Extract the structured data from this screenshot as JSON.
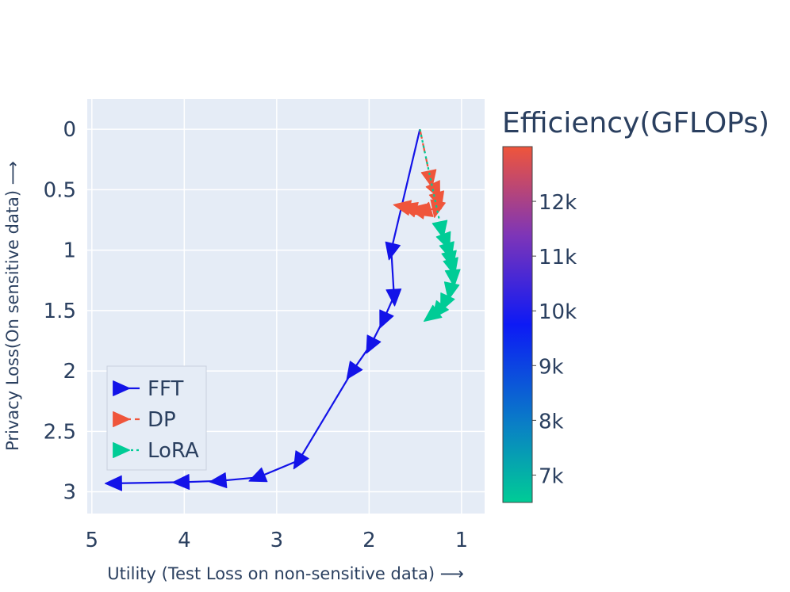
{
  "chart_data": {
    "type": "line",
    "xlabel": "Utility (Test Loss on non-sensitive data) ⟶",
    "ylabel": "Privacy Loss(On sensitive data) ⟶",
    "xlim": [
      5.05,
      0.75
    ],
    "ylim": [
      3.18,
      -0.25
    ],
    "x_ticks": [
      5,
      4,
      3,
      2,
      1
    ],
    "x_tick_labels": [
      "5",
      "4",
      "3",
      "2",
      "1"
    ],
    "y_ticks": [
      0,
      0.5,
      1,
      1.5,
      2,
      2.5,
      3
    ],
    "y_tick_labels": [
      "0",
      "0.5",
      "1",
      "1.5",
      "2",
      "2.5",
      "3"
    ],
    "x_reversed": true,
    "y_reversed": true,
    "grid": true,
    "legend_position": "bottom-left",
    "colorbar": {
      "title": "Efficiency(GFLOPs)",
      "range": [
        6500,
        13000
      ],
      "ticks": [
        7000,
        8000,
        9000,
        10000,
        11000,
        12000
      ],
      "tick_labels": [
        "7k",
        "8k",
        "9k",
        "10k",
        "11k",
        "12k"
      ],
      "colors": [
        "#00cc96",
        "#0a55d8",
        "#0d1af5",
        "#7d35b8",
        "#ef553b"
      ]
    },
    "series": [
      {
        "name": "FFT",
        "color": "#1313e8",
        "dash": "solid",
        "efficiency_gflops": 9800,
        "x": [
          1.45,
          1.76,
          1.73,
          1.84,
          1.98,
          2.18,
          2.76,
          3.2,
          3.62,
          4.02,
          4.75
        ],
        "y": [
          0.0,
          1.0,
          1.38,
          1.57,
          1.78,
          2.0,
          2.74,
          2.88,
          2.91,
          2.92,
          2.93
        ]
      },
      {
        "name": "DP",
        "color": "#ef553b",
        "dash": "dash",
        "efficiency_gflops": 12900,
        "x": [
          1.45,
          1.34,
          1.28,
          1.25,
          1.27,
          1.4,
          1.47,
          1.56,
          1.63
        ],
        "y": [
          0.0,
          0.4,
          0.5,
          0.58,
          0.65,
          0.68,
          0.67,
          0.65,
          0.64
        ]
      },
      {
        "name": "LoRA",
        "color": "#00cc96",
        "dash": "dot",
        "efficiency_gflops": 6500,
        "x": [
          1.45,
          1.22,
          1.17,
          1.14,
          1.12,
          1.1,
          1.09,
          1.12,
          1.18,
          1.25,
          1.32
        ],
        "y": [
          0.0,
          0.82,
          0.92,
          1.0,
          1.07,
          1.13,
          1.22,
          1.33,
          1.43,
          1.5,
          1.54
        ]
      }
    ]
  }
}
